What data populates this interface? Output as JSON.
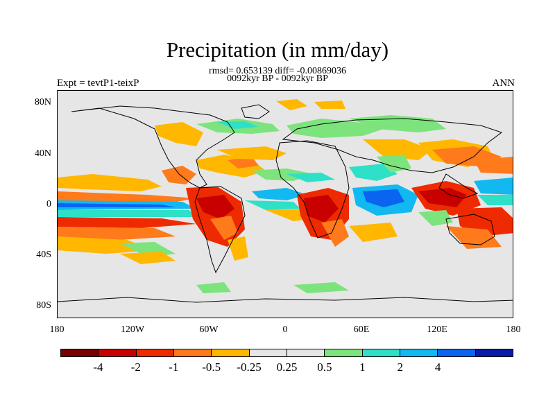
{
  "title": "Precipitation (in mm/day)",
  "stats_line": "rmsd= 0.653139 diff= -0.00869036",
  "period_line": "0092kyr BP - 0092kyr BP",
  "experiment": "Expt = tevtP1-teixP",
  "season": "ANN",
  "lat_labels": [
    "80N",
    "40N",
    "0",
    "40S",
    "80S"
  ],
  "lon_labels": [
    "180",
    "120W",
    "60W",
    "0",
    "60E",
    "120E",
    "180"
  ],
  "colorbar": {
    "colors": [
      "#7a0000",
      "#c80000",
      "#ee2a00",
      "#ff7a1a",
      "#ffb700",
      "#e6e6e6",
      "#e6e6e6",
      "#7de37d",
      "#2ee0c8",
      "#12b8f0",
      "#0a64f0",
      "#0a1aa8"
    ],
    "labels": [
      "-4",
      "-2",
      "-1",
      "-0.5",
      "-0.25",
      "0.25",
      "0.5",
      "1",
      "2",
      "4"
    ]
  }
}
